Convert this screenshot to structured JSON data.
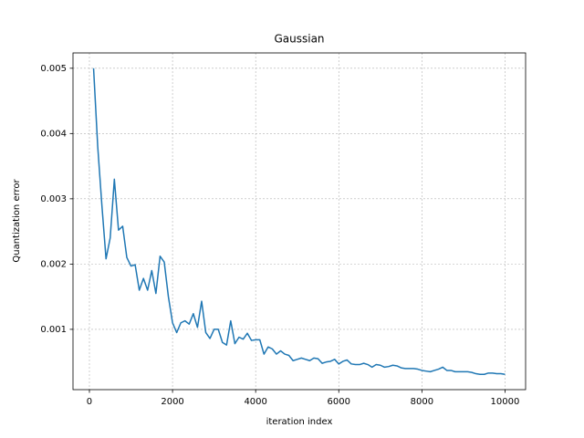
{
  "chart_data": {
    "type": "line",
    "title": "Gaussian",
    "xlabel": "iteration index",
    "ylabel": "Quantization error",
    "x": [
      100,
      200,
      300,
      400,
      500,
      600,
      700,
      800,
      900,
      1000,
      1100,
      1200,
      1300,
      1400,
      1500,
      1600,
      1700,
      1800,
      1900,
      2000,
      2100,
      2200,
      2300,
      2400,
      2500,
      2600,
      2700,
      2800,
      2900,
      3000,
      3100,
      3200,
      3300,
      3400,
      3500,
      3600,
      3700,
      3800,
      3900,
      4000,
      4100,
      4200,
      4300,
      4400,
      4500,
      4600,
      4700,
      4800,
      4900,
      5000,
      5100,
      5200,
      5300,
      5400,
      5500,
      5600,
      5700,
      5800,
      5900,
      6000,
      6100,
      6200,
      6300,
      6400,
      6500,
      6600,
      6700,
      6800,
      6900,
      7000,
      7100,
      7200,
      7300,
      7400,
      7500,
      7600,
      7700,
      7800,
      7900,
      8000,
      8100,
      8200,
      8300,
      8400,
      8500,
      8600,
      8700,
      8800,
      8900,
      9000,
      9100,
      9200,
      9300,
      9400,
      9500,
      9600,
      9700,
      9800,
      9900,
      10000
    ],
    "series": [
      {
        "color": "#1f77b4",
        "values": [
          0.005,
          0.0038,
          0.0029,
          0.00208,
          0.0024,
          0.0033,
          0.00252,
          0.00258,
          0.0021,
          0.00197,
          0.00199,
          0.0016,
          0.00178,
          0.0016,
          0.0019,
          0.00155,
          0.00212,
          0.00203,
          0.0015,
          0.0011,
          0.00095,
          0.0011,
          0.00113,
          0.00108,
          0.00124,
          0.00103,
          0.00143,
          0.00095,
          0.00086,
          0.001,
          0.001,
          0.0008,
          0.00076,
          0.00113,
          0.00078,
          0.00088,
          0.00085,
          0.00094,
          0.00083,
          0.00084,
          0.00084,
          0.00062,
          0.00073,
          0.0007,
          0.00062,
          0.00067,
          0.00062,
          0.0006,
          0.00052,
          0.00054,
          0.00056,
          0.00054,
          0.00052,
          0.00056,
          0.00055,
          0.00048,
          0.0005,
          0.00051,
          0.00054,
          0.00047,
          0.00051,
          0.00053,
          0.00047,
          0.00046,
          0.00046,
          0.00048,
          0.00046,
          0.00042,
          0.00046,
          0.00045,
          0.00042,
          0.00043,
          0.00045,
          0.00044,
          0.00041,
          0.0004,
          0.0004,
          0.0004,
          0.00039,
          0.00037,
          0.00036,
          0.00035,
          0.00037,
          0.00039,
          0.00042,
          0.00037,
          0.00037,
          0.00035,
          0.00035,
          0.00035,
          0.00035,
          0.00034,
          0.00032,
          0.00031,
          0.00031,
          0.00033,
          0.00033,
          0.00032,
          0.00032,
          0.00031
        ]
      }
    ],
    "xlim": [
      -395,
      10495
    ],
    "ylim": [
      7.6e-05,
      0.005235
    ],
    "xticks": [
      0,
      2000,
      4000,
      6000,
      8000,
      10000
    ],
    "yticks": [
      0.001,
      0.002,
      0.003,
      0.004,
      0.005
    ],
    "grid": true
  }
}
